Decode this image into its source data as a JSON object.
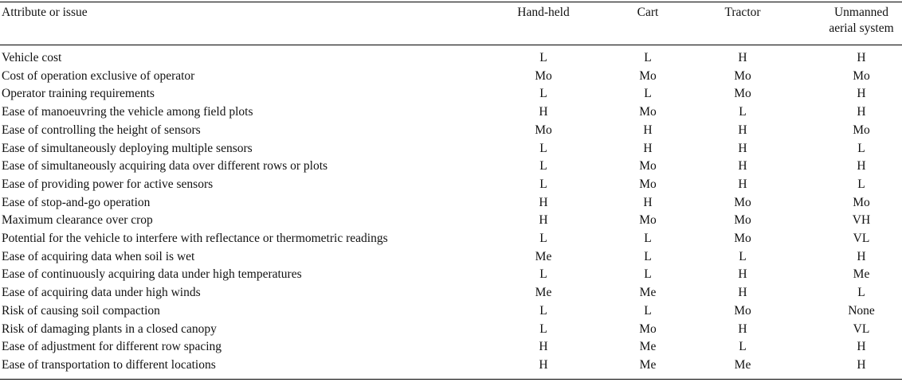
{
  "table": {
    "headers": {
      "attribute": "Attribute or issue",
      "handheld": "Hand-held",
      "cart": "Cart",
      "tractor": "Tractor",
      "uas_line1": "Unmanned",
      "uas_line2": "aerial system"
    },
    "rows": [
      {
        "attribute": "Vehicle cost",
        "handheld": "L",
        "cart": "L",
        "tractor": "H",
        "uas": "H"
      },
      {
        "attribute": "Cost of operation exclusive of operator",
        "handheld": "Mo",
        "cart": "Mo",
        "tractor": "Mo",
        "uas": "Mo"
      },
      {
        "attribute": "Operator training requirements",
        "handheld": "L",
        "cart": "L",
        "tractor": "Mo",
        "uas": "H"
      },
      {
        "attribute": "Ease of manoeuvring the vehicle among field plots",
        "handheld": "H",
        "cart": "Mo",
        "tractor": "L",
        "uas": "H"
      },
      {
        "attribute": "Ease of controlling the height of sensors",
        "handheld": "Mo",
        "cart": "H",
        "tractor": "H",
        "uas": "Mo"
      },
      {
        "attribute": "Ease of simultaneously deploying multiple sensors",
        "handheld": "L",
        "cart": "H",
        "tractor": "H",
        "uas": "L"
      },
      {
        "attribute": "Ease of simultaneously acquiring data over different rows or plots",
        "handheld": "L",
        "cart": "Mo",
        "tractor": "H",
        "uas": "H"
      },
      {
        "attribute": "Ease of providing power for active sensors",
        "handheld": "L",
        "cart": "Mo",
        "tractor": "H",
        "uas": "L"
      },
      {
        "attribute": "Ease of stop-and-go operation",
        "handheld": "H",
        "cart": "H",
        "tractor": "Mo",
        "uas": "Mo"
      },
      {
        "attribute": "Maximum clearance over crop",
        "handheld": "H",
        "cart": "Mo",
        "tractor": "Mo",
        "uas": "VH"
      },
      {
        "attribute": "Potential for the vehicle to interfere with reflectance or thermometric readings",
        "handheld": "L",
        "cart": "L",
        "tractor": "Mo",
        "uas": "VL"
      },
      {
        "attribute": "Ease of acquiring data when soil is wet",
        "handheld": "Me",
        "cart": "L",
        "tractor": "L",
        "uas": "H"
      },
      {
        "attribute": "Ease of continuously acquiring data under high temperatures",
        "handheld": "L",
        "cart": "L",
        "tractor": "H",
        "uas": "Me"
      },
      {
        "attribute": "Ease of acquiring data under high winds",
        "handheld": "Me",
        "cart": "Me",
        "tractor": "H",
        "uas": "L"
      },
      {
        "attribute": "Risk of causing soil compaction",
        "handheld": "L",
        "cart": "L",
        "tractor": "Mo",
        "uas": "None"
      },
      {
        "attribute": "Risk of damaging plants in a closed canopy",
        "handheld": "L",
        "cart": "Mo",
        "tractor": "H",
        "uas": "VL"
      },
      {
        "attribute": "Ease of adjustment for different row spacing",
        "handheld": "H",
        "cart": "Me",
        "tractor": "L",
        "uas": "H"
      },
      {
        "attribute": "Ease of transportation to different locations",
        "handheld": "H",
        "cart": "Me",
        "tractor": "Me",
        "uas": "H"
      }
    ]
  }
}
